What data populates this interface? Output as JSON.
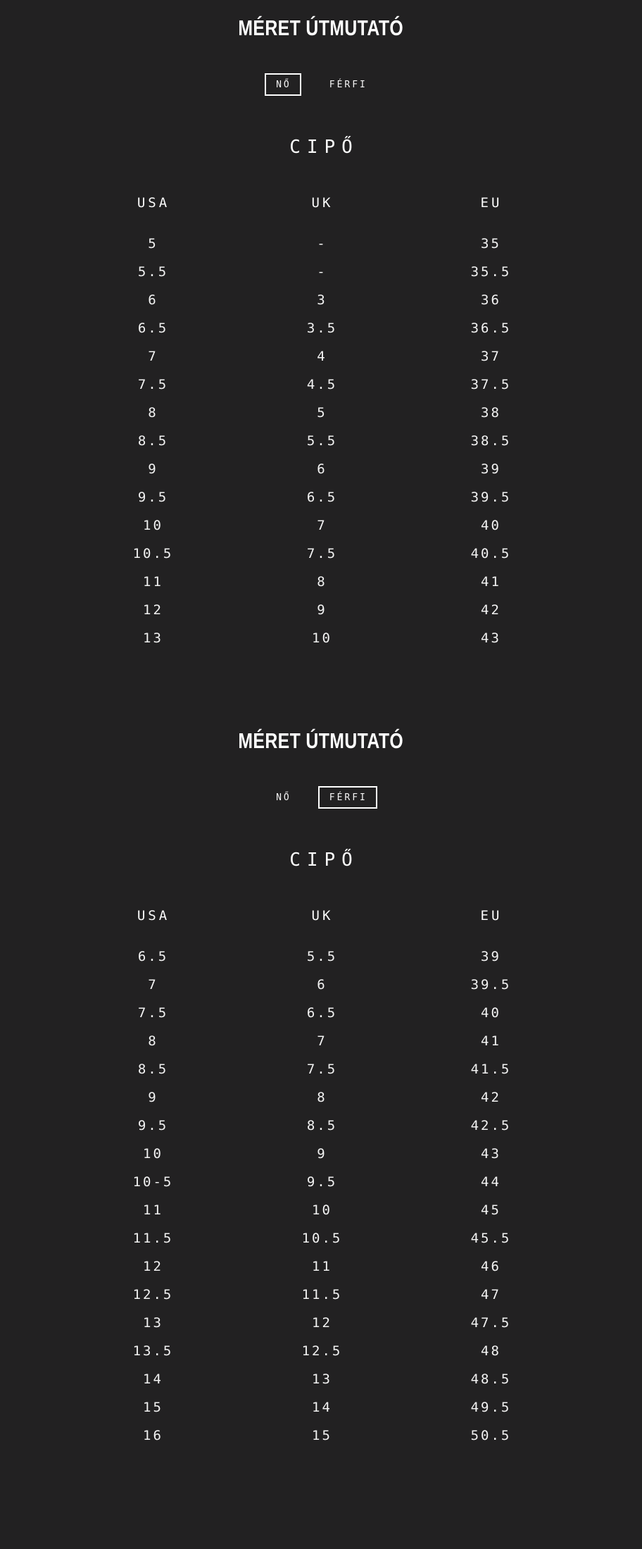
{
  "page": {
    "background_color": "#222122",
    "text_color": "#f5f5f5",
    "accent_color": "#ffffff"
  },
  "sections": [
    {
      "title": "MÉRET ÚTMUTATÓ",
      "tabs": [
        {
          "label": "NŐ",
          "selected": true
        },
        {
          "label": "FÉRFI",
          "selected": false
        }
      ],
      "subtitle": "CIPŐ",
      "table": {
        "headers": [
          "USA",
          "UK",
          "EU"
        ],
        "rows": [
          [
            "5",
            "-",
            "35"
          ],
          [
            "5.5",
            "-",
            "35.5"
          ],
          [
            "6",
            "3",
            "36"
          ],
          [
            "6.5",
            "3.5",
            "36.5"
          ],
          [
            "7",
            "4",
            "37"
          ],
          [
            "7.5",
            "4.5",
            "37.5"
          ],
          [
            "8",
            "5",
            "38"
          ],
          [
            "8.5",
            "5.5",
            "38.5"
          ],
          [
            "9",
            "6",
            "39"
          ],
          [
            "9.5",
            "6.5",
            "39.5"
          ],
          [
            "10",
            "7",
            "40"
          ],
          [
            "10.5",
            "7.5",
            "40.5"
          ],
          [
            "11",
            "8",
            "41"
          ],
          [
            "12",
            "9",
            "42"
          ],
          [
            "13",
            "10",
            "43"
          ]
        ]
      }
    },
    {
      "title": "MÉRET ÚTMUTATÓ",
      "tabs": [
        {
          "label": "NŐ",
          "selected": false
        },
        {
          "label": "FÉRFI",
          "selected": true
        }
      ],
      "subtitle": "CIPŐ",
      "table": {
        "headers": [
          "USA",
          "UK",
          "EU"
        ],
        "rows": [
          [
            "6.5",
            "5.5",
            "39"
          ],
          [
            "7",
            "6",
            "39.5"
          ],
          [
            "7.5",
            "6.5",
            "40"
          ],
          [
            "8",
            "7",
            "41"
          ],
          [
            "8.5",
            "7.5",
            "41.5"
          ],
          [
            "9",
            "8",
            "42"
          ],
          [
            "9.5",
            "8.5",
            "42.5"
          ],
          [
            "10",
            "9",
            "43"
          ],
          [
            "10-5",
            "9.5",
            "44"
          ],
          [
            "11",
            "10",
            "45"
          ],
          [
            "11.5",
            "10.5",
            "45.5"
          ],
          [
            "12",
            "11",
            "46"
          ],
          [
            "12.5",
            "11.5",
            "47"
          ],
          [
            "13",
            "12",
            "47.5"
          ],
          [
            "13.5",
            "12.5",
            "48"
          ],
          [
            "14",
            "13",
            "48.5"
          ],
          [
            "15",
            "14",
            "49.5"
          ],
          [
            "16",
            "15",
            "50.5"
          ]
        ]
      }
    }
  ]
}
